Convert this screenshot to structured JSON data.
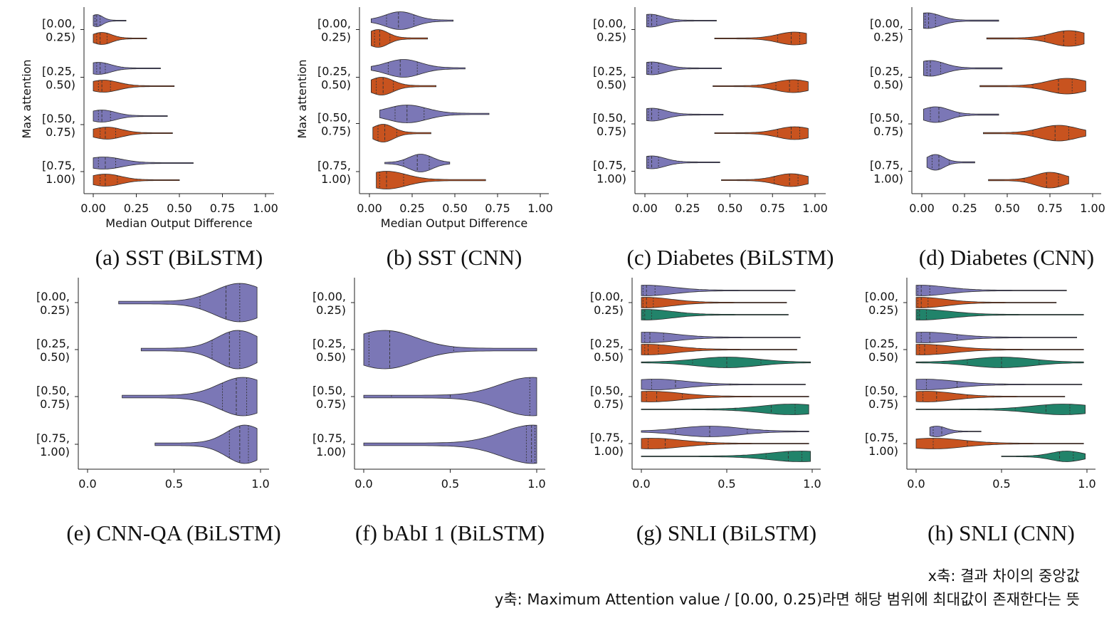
{
  "colors": {
    "purple": "#7b77b6",
    "orange": "#c8531f",
    "green": "#21836a"
  },
  "notes": {
    "x_axis": "x축: 결과 차이의 중앙값",
    "y_axis": "y축: Maximum Attention value / [0.00, 0.25)라면 해당 범위에 최대값이 존재한다는 뜻"
  },
  "chart_data": [
    {
      "type": "violin",
      "caption": "(a) SST (BiLSTM)",
      "xlabel": "Median Output Difference",
      "ylabel": "Max attention",
      "xticks": [
        "0.00",
        "0.25",
        "0.50",
        "0.75",
        "1.00"
      ],
      "xlim": [
        0,
        1
      ],
      "categories": [
        "[0.00,\n0.25)",
        "[0.25,\n0.50)",
        "[0.50,\n0.75)",
        "[0.75,\n1.00)"
      ],
      "series_colors": [
        "purple",
        "orange"
      ],
      "violins": [
        [
          {
            "min": 0,
            "max": 0.19,
            "mode": 0.02,
            "quartiles": [
              0.01,
              0.02,
              0.04
            ]
          },
          {
            "min": 0,
            "max": 0.31,
            "mode": 0.05,
            "quartiles": [
              0.02,
              0.04,
              0.08
            ]
          }
        ],
        [
          {
            "min": 0,
            "max": 0.39,
            "mode": 0.03,
            "quartiles": [
              0.02,
              0.04,
              0.07
            ]
          },
          {
            "min": 0,
            "max": 0.47,
            "mode": 0.06,
            "quartiles": [
              0.03,
              0.05,
              0.1
            ]
          }
        ],
        [
          {
            "min": 0,
            "max": 0.43,
            "mode": 0.05,
            "quartiles": [
              0.03,
              0.05,
              0.1
            ]
          },
          {
            "min": 0,
            "max": 0.46,
            "mode": 0.08,
            "quartiles": [
              0.04,
              0.07,
              0.13
            ]
          }
        ],
        [
          {
            "min": 0,
            "max": 0.58,
            "mode": 0.06,
            "quartiles": [
              0.03,
              0.07,
              0.13
            ]
          },
          {
            "min": 0,
            "max": 0.5,
            "mode": 0.07,
            "quartiles": [
              0.04,
              0.07,
              0.14
            ]
          }
        ]
      ]
    },
    {
      "type": "violin",
      "caption": "(b) SST (CNN)",
      "xlabel": "Median Output Difference",
      "ylabel": "Max attention",
      "xticks": [
        "0.00",
        "0.25",
        "0.50",
        "0.75",
        "1.00"
      ],
      "xlim": [
        0,
        1
      ],
      "categories": [
        "[0.00,\n0.25)",
        "[0.25,\n0.50)",
        "[0.50,\n0.75)",
        "[0.75,\n1.00)"
      ],
      "series_colors": [
        "purple",
        "orange"
      ],
      "violins": [
        [
          {
            "min": 0.01,
            "max": 0.49,
            "mode": 0.18,
            "quartiles": [
              0.1,
              0.17,
              0.26
            ]
          },
          {
            "min": 0.01,
            "max": 0.34,
            "mode": 0.05,
            "quartiles": [
              0.03,
              0.06,
              0.12
            ]
          }
        ],
        [
          {
            "min": 0.01,
            "max": 0.56,
            "mode": 0.2,
            "quartiles": [
              0.11,
              0.18,
              0.28
            ]
          },
          {
            "min": 0.01,
            "max": 0.39,
            "mode": 0.07,
            "quartiles": [
              0.04,
              0.08,
              0.14
            ]
          }
        ],
        [
          {
            "min": 0.06,
            "max": 0.7,
            "mode": 0.22,
            "quartiles": [
              0.15,
              0.22,
              0.32
            ]
          },
          {
            "min": 0.02,
            "max": 0.36,
            "mode": 0.08,
            "quartiles": [
              0.05,
              0.09,
              0.16
            ]
          }
        ],
        [
          {
            "min": 0.09,
            "max": 0.47,
            "mode": 0.3,
            "quartiles": [
              0.2,
              0.28,
              0.35
            ]
          },
          {
            "min": 0.04,
            "max": 0.68,
            "mode": 0.1,
            "quartiles": [
              0.06,
              0.1,
              0.2
            ]
          }
        ]
      ]
    },
    {
      "type": "violin",
      "caption": "(c) Diabetes (BiLSTM)",
      "xlabel": "",
      "ylabel": "",
      "xticks": [
        "0.00",
        "0.25",
        "0.50",
        "0.75",
        "1.00"
      ],
      "xlim": [
        0,
        1
      ],
      "categories": [
        "[0.00,\n0.25)",
        "[0.25,\n0.50)",
        "[0.50,\n0.75)",
        "[0.75,\n1.00)"
      ],
      "series_colors": [
        "purple",
        "orange"
      ],
      "violins": [
        [
          {
            "min": 0.01,
            "max": 0.42,
            "mode": 0.03,
            "quartiles": [
              0.02,
              0.04,
              0.07
            ]
          },
          {
            "min": 0.41,
            "max": 0.95,
            "mode": 0.88,
            "quartiles": [
              0.78,
              0.86,
              0.91
            ]
          }
        ],
        [
          {
            "min": 0.01,
            "max": 0.45,
            "mode": 0.04,
            "quartiles": [
              0.02,
              0.04,
              0.08
            ]
          },
          {
            "min": 0.4,
            "max": 0.96,
            "mode": 0.87,
            "quartiles": [
              0.77,
              0.85,
              0.9
            ]
          }
        ],
        [
          {
            "min": 0.01,
            "max": 0.46,
            "mode": 0.04,
            "quartiles": [
              0.02,
              0.04,
              0.08
            ]
          },
          {
            "min": 0.41,
            "max": 0.96,
            "mode": 0.88,
            "quartiles": [
              0.78,
              0.86,
              0.91
            ]
          }
        ],
        [
          {
            "min": 0.01,
            "max": 0.44,
            "mode": 0.04,
            "quartiles": [
              0.02,
              0.04,
              0.08
            ]
          },
          {
            "min": 0.45,
            "max": 0.96,
            "mode": 0.86,
            "quartiles": [
              0.76,
              0.85,
              0.9
            ]
          }
        ]
      ]
    },
    {
      "type": "violin",
      "caption": "(d) Diabetes (CNN)",
      "xlabel": "",
      "ylabel": "",
      "xticks": [
        "0.00",
        "0.25",
        "0.50",
        "0.75",
        "1.00"
      ],
      "xlim": [
        0,
        1
      ],
      "categories": [
        "[0.00,\n0.25)",
        "[0.25,\n0.50)",
        "[0.50,\n0.75)",
        "[0.75,\n1.00)"
      ],
      "series_colors": [
        "purple",
        "orange"
      ],
      "violins": [
        [
          {
            "min": 0.01,
            "max": 0.45,
            "mode": 0.03,
            "quartiles": [
              0.02,
              0.04,
              0.08
            ]
          },
          {
            "min": 0.38,
            "max": 0.95,
            "mode": 0.86,
            "quartiles": [
              0.72,
              0.83,
              0.9
            ]
          }
        ],
        [
          {
            "min": 0.01,
            "max": 0.47,
            "mode": 0.05,
            "quartiles": [
              0.03,
              0.05,
              0.11
            ]
          },
          {
            "min": 0.34,
            "max": 0.96,
            "mode": 0.85,
            "quartiles": [
              0.65,
              0.8,
              0.88
            ]
          }
        ],
        [
          {
            "min": 0.01,
            "max": 0.45,
            "mode": 0.08,
            "quartiles": [
              0.05,
              0.1,
              0.22
            ]
          },
          {
            "min": 0.36,
            "max": 0.96,
            "mode": 0.8,
            "quartiles": [
              0.65,
              0.78,
              0.86
            ]
          }
        ],
        [
          {
            "min": 0.03,
            "max": 0.31,
            "mode": 0.08,
            "quartiles": [
              0.06,
              0.1,
              0.16
            ]
          },
          {
            "min": 0.39,
            "max": 0.86,
            "mode": 0.75,
            "quartiles": [
              0.6,
              0.73,
              0.8
            ]
          }
        ]
      ]
    },
    {
      "type": "violin",
      "caption": "(e) CNN-QA (BiLSTM)",
      "xlabel": "",
      "ylabel": "",
      "xticks": [
        "0.0",
        "0.5",
        "1.0"
      ],
      "xlim": [
        0,
        1
      ],
      "categories": [
        "[0.00,\n0.25)",
        "[0.25,\n0.50)",
        "[0.50,\n0.75)",
        "[0.75,\n1.00)"
      ],
      "series_colors": [
        "purple"
      ],
      "violins": [
        [
          {
            "min": 0.18,
            "max": 0.98,
            "mode": 0.88,
            "quartiles": [
              0.65,
              0.8,
              0.88
            ]
          }
        ],
        [
          {
            "min": 0.31,
            "max": 0.98,
            "mode": 0.87,
            "quartiles": [
              0.72,
              0.82,
              0.88
            ]
          }
        ],
        [
          {
            "min": 0.2,
            "max": 0.98,
            "mode": 0.9,
            "quartiles": [
              0.78,
              0.86,
              0.92
            ]
          }
        ],
        [
          {
            "min": 0.39,
            "max": 0.98,
            "mode": 0.91,
            "quartiles": [
              0.82,
              0.88,
              0.93
            ]
          }
        ]
      ]
    },
    {
      "type": "violin",
      "caption": "(f) bAbI 1 (BiLSTM)",
      "xlabel": "",
      "ylabel": "",
      "xticks": [
        "0.0",
        "0.5",
        "1.0"
      ],
      "xlim": [
        0,
        1
      ],
      "categories": [
        "[0.00,\n0.25)",
        "[0.25,\n0.50)",
        "[0.50,\n0.75)",
        "[0.75,\n1.00)"
      ],
      "series_colors": [
        "purple"
      ],
      "violins": [
        [],
        [
          {
            "min": 0.0,
            "max": 1.0,
            "mode": 0.12,
            "quartiles": [
              0.03,
              0.15,
              0.52
            ]
          }
        ],
        [
          {
            "min": 0.0,
            "max": 1.0,
            "mode": 0.97,
            "quartiles": [
              0.16,
              0.5,
              0.96
            ]
          }
        ],
        [
          {
            "min": 0.0,
            "max": 1.0,
            "mode": 0.98,
            "quartiles": [
              0.94,
              0.97,
              0.99
            ]
          }
        ]
      ]
    },
    {
      "type": "violin",
      "caption": "(g) SNLI (BiLSTM)",
      "xlabel": "",
      "ylabel": "",
      "xticks": [
        "0.0",
        "0.5",
        "1.0"
      ],
      "xlim": [
        0,
        1
      ],
      "categories": [
        "[0.00,\n0.25)",
        "[0.25,\n0.50)",
        "[0.50,\n0.75)",
        "[0.75,\n1.00)"
      ],
      "series_colors": [
        "purple",
        "orange",
        "green"
      ],
      "violins": [
        [
          {
            "min": 0.0,
            "max": 0.9,
            "mode": 0.02,
            "quartiles": [
              0.01,
              0.03,
              0.08
            ]
          },
          {
            "min": 0.0,
            "max": 0.85,
            "mode": 0.02,
            "quartiles": [
              0.01,
              0.03,
              0.07
            ]
          },
          {
            "min": 0.0,
            "max": 0.86,
            "mode": 0.02,
            "quartiles": [
              0.01,
              0.02,
              0.06
            ]
          }
        ],
        [
          {
            "min": 0.0,
            "max": 0.93,
            "mode": 0.03,
            "quartiles": [
              0.02,
              0.05,
              0.13
            ]
          },
          {
            "min": 0.0,
            "max": 0.91,
            "mode": 0.03,
            "quartiles": [
              0.02,
              0.04,
              0.1
            ]
          },
          {
            "min": 0.0,
            "max": 0.99,
            "mode": 0.5,
            "quartiles": [
              0.3,
              0.5,
              0.7
            ]
          }
        ],
        [
          {
            "min": 0.0,
            "max": 0.96,
            "mode": 0.08,
            "quartiles": [
              0.06,
              0.2,
              0.52
            ]
          },
          {
            "min": 0.0,
            "max": 0.98,
            "mode": 0.05,
            "quartiles": [
              0.03,
              0.09,
              0.24
            ]
          },
          {
            "min": 0.0,
            "max": 0.98,
            "mode": 0.88,
            "quartiles": [
              0.55,
              0.76,
              0.9
            ]
          }
        ],
        [
          {
            "min": 0.0,
            "max": 0.98,
            "mode": 0.4,
            "quartiles": [
              0.2,
              0.4,
              0.62
            ]
          },
          {
            "min": 0.0,
            "max": 0.98,
            "mode": 0.06,
            "quartiles": [
              0.04,
              0.14,
              0.38
            ]
          },
          {
            "min": 0.0,
            "max": 0.99,
            "mode": 0.93,
            "quartiles": [
              0.73,
              0.86,
              0.94
            ]
          }
        ]
      ]
    },
    {
      "type": "violin",
      "caption": "(h) SNLI (CNN)",
      "xlabel": "",
      "ylabel": "",
      "xticks": [
        "0.0",
        "0.5",
        "1.0"
      ],
      "xlim": [
        0,
        1
      ],
      "categories": [
        "[0.00,\n0.25)",
        "[0.25,\n0.50)",
        "[0.50,\n0.75)",
        "[0.75,\n1.00)"
      ],
      "series_colors": [
        "purple",
        "orange",
        "green"
      ],
      "violins": [
        [
          {
            "min": 0.0,
            "max": 0.88,
            "mode": 0.02,
            "quartiles": [
              0.01,
              0.03,
              0.08
            ]
          },
          {
            "min": 0.0,
            "max": 0.82,
            "mode": 0.02,
            "quartiles": [
              0.01,
              0.03,
              0.07
            ]
          },
          {
            "min": 0.0,
            "max": 0.98,
            "mode": 0.02,
            "quartiles": [
              0.01,
              0.02,
              0.06
            ]
          }
        ],
        [
          {
            "min": 0.0,
            "max": 0.94,
            "mode": 0.05,
            "quartiles": [
              0.03,
              0.08,
              0.24
            ]
          },
          {
            "min": 0.0,
            "max": 0.98,
            "mode": 0.03,
            "quartiles": [
              0.02,
              0.05,
              0.12
            ]
          },
          {
            "min": 0.0,
            "max": 0.98,
            "mode": 0.5,
            "quartiles": [
              0.3,
              0.5,
              0.72
            ]
          }
        ],
        [
          {
            "min": 0.0,
            "max": 0.97,
            "mode": 0.05,
            "quartiles": [
              0.06,
              0.24,
              0.52
            ]
          },
          {
            "min": 0.0,
            "max": 0.87,
            "mode": 0.06,
            "quartiles": [
              0.04,
              0.12,
              0.3
            ]
          },
          {
            "min": 0.0,
            "max": 0.99,
            "mode": 0.86,
            "quartiles": [
              0.58,
              0.76,
              0.9
            ]
          }
        ],
        [
          {
            "min": 0.08,
            "max": 0.38,
            "mode": 0.12,
            "quartiles": [
              0.1,
              0.15,
              0.25
            ]
          },
          {
            "min": 0.0,
            "max": 0.98,
            "mode": 0.1,
            "quartiles": [
              0.1,
              0.3,
              0.6
            ]
          },
          {
            "min": 0.5,
            "max": 0.99,
            "mode": 0.88,
            "quartiles": [
              0.72,
              0.84,
              0.92
            ]
          }
        ]
      ]
    }
  ]
}
